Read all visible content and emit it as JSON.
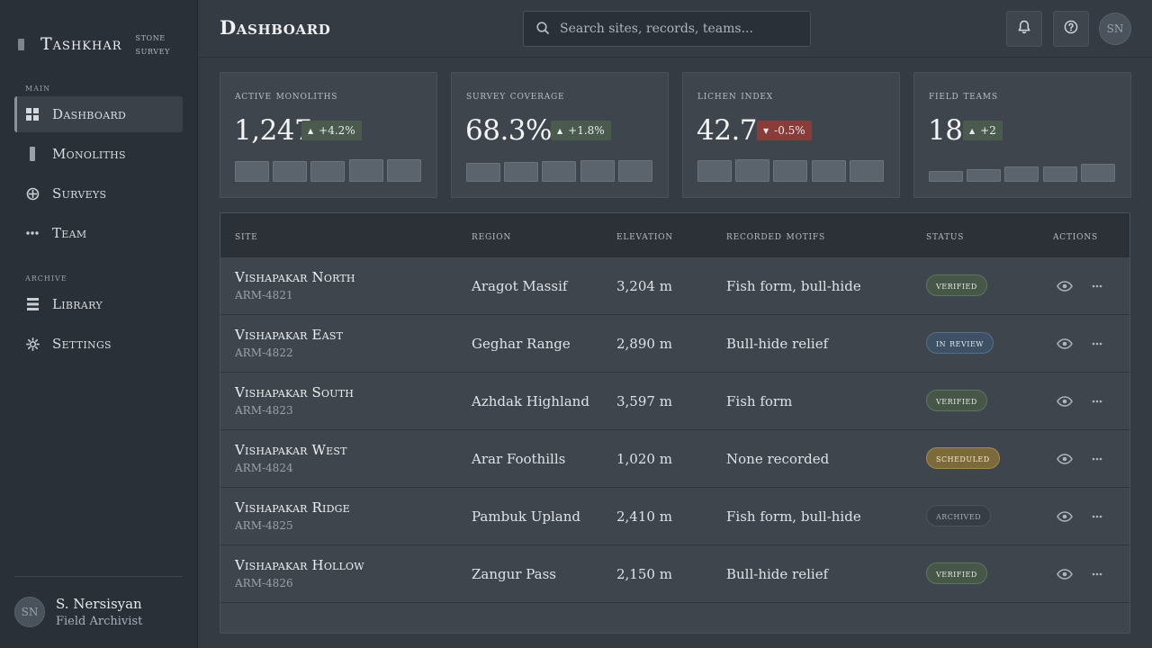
{
  "brand": {
    "name": "Tashkhar",
    "sub_line1": "Stone",
    "sub_line2": "Survey"
  },
  "sidebar": {
    "section_main": "Main",
    "section_archive": "Archive",
    "items": [
      {
        "label": "Dashboard",
        "icon": "grid-icon",
        "active": true
      },
      {
        "label": "Monoliths",
        "icon": "monolith-icon"
      },
      {
        "label": "Surveys",
        "icon": "crosshair-icon"
      },
      {
        "label": "Team",
        "icon": "dots-icon"
      },
      {
        "label": "Library",
        "icon": "stack-icon"
      },
      {
        "label": "Settings",
        "icon": "gear-icon"
      }
    ],
    "user": {
      "initials": "SN",
      "name": "S. Nersisyan",
      "role": "Field Archivist"
    }
  },
  "header": {
    "title": "Dashboard",
    "search_placeholder": "Search sites, records, teams...",
    "avatar_initials": "SN"
  },
  "stats": [
    {
      "label": "Active Monoliths",
      "value": "1,247",
      "delta": "+4.2%",
      "direction": "up"
    },
    {
      "label": "Survey Coverage",
      "value": "68.3%",
      "delta": "+1.8%",
      "direction": "up"
    },
    {
      "label": "Lichen Index",
      "value": "42.7",
      "delta": "-0.5%",
      "direction": "down"
    },
    {
      "label": "Field Teams",
      "value": "18",
      "delta": "+2",
      "direction": "up"
    }
  ],
  "table": {
    "columns": [
      "Site",
      "Region",
      "Elevation",
      "Recorded Motifs",
      "Status",
      "Actions"
    ],
    "rows": [
      {
        "site": "Vishapakar North",
        "id": "ARM-4821",
        "region": "Aragot Massif",
        "elevation": "3,204 m",
        "motifs": "Fish form, bull-hide",
        "status": "Verified",
        "status_class": "verified"
      },
      {
        "site": "Vishapakar East",
        "id": "ARM-4822",
        "region": "Geghar Range",
        "elevation": "2,890 m",
        "motifs": "Bull-hide relief",
        "status": "In Review",
        "status_class": "review"
      },
      {
        "site": "Vishapakar South",
        "id": "ARM-4823",
        "region": "Azhdak Highland",
        "elevation": "3,597 m",
        "motifs": "Fish form",
        "status": "Verified",
        "status_class": "verified"
      },
      {
        "site": "Vishapakar West",
        "id": "ARM-4824",
        "region": "Arar Foothills",
        "elevation": "1,020 m",
        "motifs": "None recorded",
        "status": "Scheduled",
        "status_class": "scheduled"
      },
      {
        "site": "Vishapakar Ridge",
        "id": "ARM-4825",
        "region": "Pambuk Upland",
        "elevation": "2,410 m",
        "motifs": "Fish form, bull-hide",
        "status": "Archived",
        "status_class": "archived"
      },
      {
        "site": "Vishapakar Hollow",
        "id": "ARM-4826",
        "region": "Zangur Pass",
        "elevation": "2,150 m",
        "motifs": "Bull-hide relief",
        "status": "Verified",
        "status_class": "verified"
      }
    ]
  }
}
